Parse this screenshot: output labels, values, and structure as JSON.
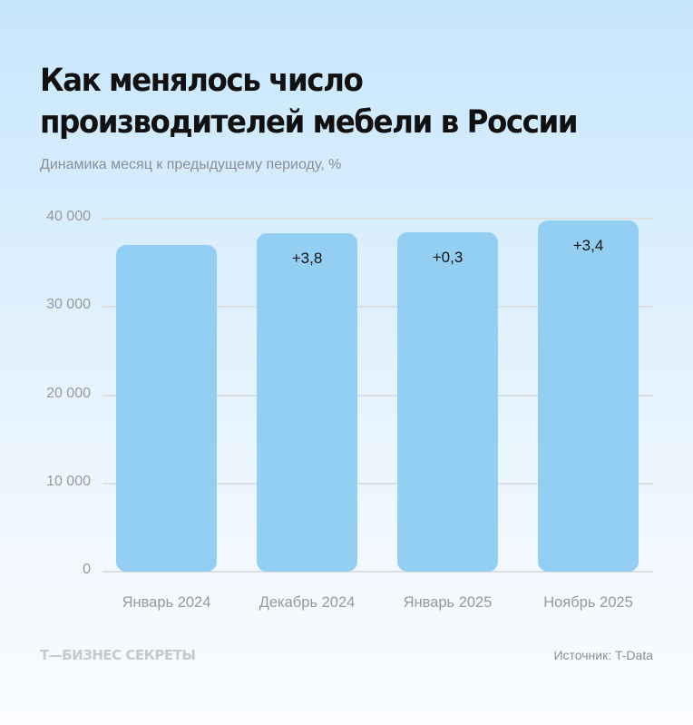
{
  "header": {
    "title": "Как менялось число производителей мебели в России",
    "subtitle": "Динамика месяц к предыдущему периоду, %"
  },
  "chart_data": {
    "type": "bar",
    "title": "Как менялось число производителей мебели в России",
    "subtitle": "Динамика месяц к предыдущему периоду, %",
    "xlabel": "",
    "ylabel": "",
    "ylim": [
      0,
      40000
    ],
    "yticks": [
      "0",
      "10 000",
      "20 000",
      "30 000",
      "40 000"
    ],
    "grid": true,
    "categories": [
      "Январь 2024",
      "Декабрь 2024",
      "Январь 2025",
      "Ноябрь 2025"
    ],
    "values": [
      37000,
      38400,
      38500,
      39800
    ],
    "annotations": [
      "",
      "+3,8",
      "+0,3",
      "+3,4"
    ],
    "bar_color": "#92cff3"
  },
  "footer": {
    "brand": "Т—БИЗНЕС СЕКРЕТЫ",
    "source": "Источник: T-Data"
  }
}
